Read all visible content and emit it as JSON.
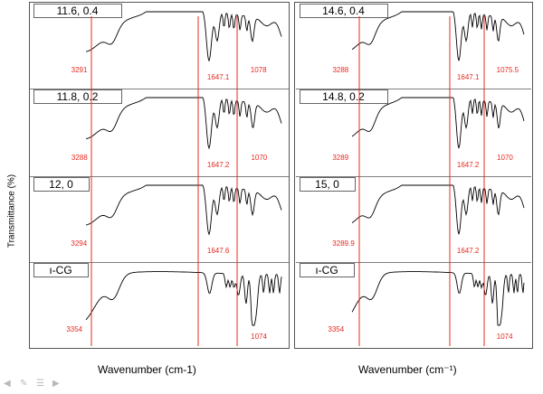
{
  "y_axis_label": "Transmittance (%)",
  "x_axis_labels": {
    "left": "Wavenumber (cm-1)",
    "right": "Wavenumber (cm⁻¹)"
  },
  "colors": {
    "trace": "#000000",
    "marker": "#e8281e",
    "frame": "#555555",
    "peak_label": "#e8281e"
  },
  "footer_icons": [
    "prev-arrow-icon",
    "pen-icon",
    "menu-icon",
    "next-arrow-icon"
  ],
  "chart_data": [
    {
      "type": "line",
      "column": "left",
      "row": 0,
      "title": "11.6, 0.4",
      "trace": "A",
      "peaks": [
        {
          "x": 3291,
          "label": "3291"
        },
        {
          "x": 1647.1,
          "label": "1647.1"
        },
        {
          "x": 1078,
          "label": "1078"
        }
      ]
    },
    {
      "type": "line",
      "column": "left",
      "row": 1,
      "title": "11.8, 0.2",
      "trace": "A",
      "peaks": [
        {
          "x": 3288,
          "label": "3288"
        },
        {
          "x": 1647.2,
          "label": "1647.2"
        },
        {
          "x": 1070,
          "label": "1070"
        }
      ]
    },
    {
      "type": "line",
      "column": "left",
      "row": 2,
      "title": "12, 0",
      "trace": "A",
      "peaks": [
        {
          "x": 3294,
          "label": "3294"
        },
        {
          "x": 1647.6,
          "label": "1647.6"
        }
      ]
    },
    {
      "type": "line",
      "column": "left",
      "row": 3,
      "title": "ı-CG",
      "trace": "B",
      "peaks": [
        {
          "x": 3354,
          "label": "3354"
        },
        {
          "x": 1074,
          "label": "1074"
        }
      ]
    },
    {
      "type": "line",
      "column": "right",
      "row": 0,
      "title": "14.6, 0.4",
      "trace": "A",
      "peaks": [
        {
          "x": 3288,
          "label": "3288"
        },
        {
          "x": 1647.1,
          "label": "1647.1"
        },
        {
          "x": 1075.5,
          "label": "1075.5"
        }
      ]
    },
    {
      "type": "line",
      "column": "right",
      "row": 1,
      "title": "14.8, 0.2",
      "trace": "A",
      "peaks": [
        {
          "x": 3289,
          "label": "3289"
        },
        {
          "x": 1647.2,
          "label": "1647.2"
        },
        {
          "x": 1070,
          "label": "1070"
        }
      ]
    },
    {
      "type": "line",
      "column": "right",
      "row": 2,
      "title": "15, 0",
      "trace": "A",
      "peaks": [
        {
          "x": 3289.9,
          "label": "3289.9"
        },
        {
          "x": 1647.2,
          "label": "1647.2"
        }
      ]
    },
    {
      "type": "line",
      "column": "right",
      "row": 3,
      "title": "ı-CG",
      "trace": "B",
      "peaks": [
        {
          "x": 3354,
          "label": "3354"
        },
        {
          "x": 1074,
          "label": "1074"
        }
      ]
    }
  ]
}
